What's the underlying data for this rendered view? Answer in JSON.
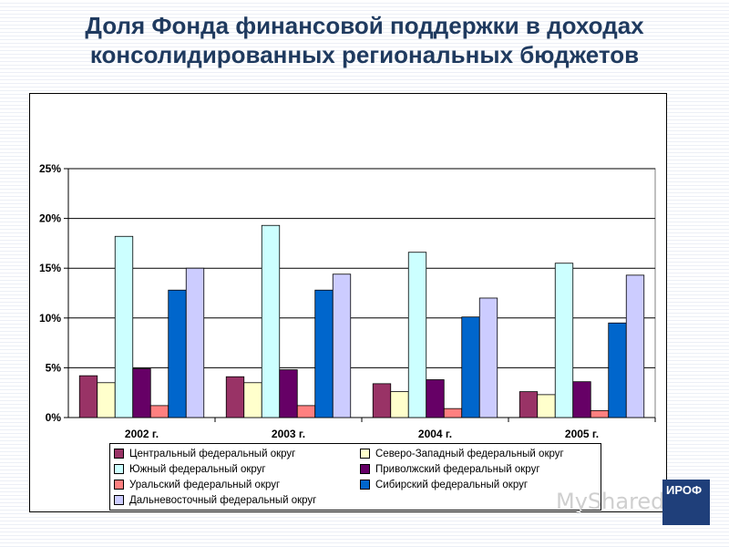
{
  "title_line1": "Доля Фонда финансовой поддержки в доходах",
  "title_line2": "консолидированных региональных бюджетов",
  "watermark": "MyShared",
  "logo_text": "ИРОФ",
  "chart_data": {
    "type": "bar",
    "title": "Доля Фонда финансовой поддержки в доходах консолидированных региональных бюджетов",
    "categories": [
      "2002 г.",
      "2003 г.",
      "2004 г.",
      "2005 г."
    ],
    "ylim": [
      0,
      25
    ],
    "yticks": [
      "0%",
      "5%",
      "10%",
      "15%",
      "20%",
      "25%"
    ],
    "grid": true,
    "legend_position": "bottom",
    "series": [
      {
        "name": "Центральный федеральный округ",
        "color": "#993366",
        "values": [
          4.2,
          4.1,
          3.4,
          2.6
        ]
      },
      {
        "name": "Северо-Западный федеральный округ",
        "color": "#ffffcc",
        "values": [
          3.5,
          3.5,
          2.6,
          2.3
        ]
      },
      {
        "name": "Южный федеральный округ",
        "color": "#ccffff",
        "values": [
          18.2,
          19.3,
          16.6,
          15.5
        ]
      },
      {
        "name": "Приволжский федеральный округ",
        "color": "#660066",
        "values": [
          4.9,
          4.8,
          3.8,
          3.6
        ]
      },
      {
        "name": "Уральский федеральный округ",
        "color": "#ff8080",
        "values": [
          1.2,
          1.2,
          0.9,
          0.7
        ]
      },
      {
        "name": "Сибирский федеральный округ",
        "color": "#0066cc",
        "values": [
          12.8,
          12.8,
          10.1,
          9.5
        ]
      },
      {
        "name": "Дальневосточный федеральный округ",
        "color": "#ccccff",
        "values": [
          15.0,
          14.4,
          12.0,
          14.3
        ]
      }
    ]
  }
}
